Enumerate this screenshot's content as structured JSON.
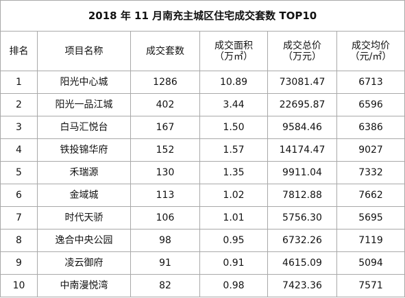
{
  "title": "2018 年 11 月南充主城区住宅成交套数 TOP10",
  "headers": {
    "rank": "排名",
    "name": "项目名称",
    "sets": "成交套数",
    "area_line1": "成交面积",
    "area_line2": "（万㎡）",
    "total_line1": "成交总价",
    "total_line2": "（万元）",
    "avg_line1": "成交均价",
    "avg_line2": "（元/㎡）"
  },
  "rows": [
    {
      "rank": "1",
      "name": "阳光中心城",
      "sets": "1286",
      "area": "10.89",
      "total": "73081.47",
      "avg": "6713"
    },
    {
      "rank": "2",
      "name": "阳光一品江城",
      "sets": "402",
      "area": "3.44",
      "total": "22695.87",
      "avg": "6596"
    },
    {
      "rank": "3",
      "name": "白马汇悦台",
      "sets": "167",
      "area": "1.50",
      "total": "9584.46",
      "avg": "6386"
    },
    {
      "rank": "4",
      "name": "铁投锦华府",
      "sets": "152",
      "area": "1.57",
      "total": "14174.47",
      "avg": "9027"
    },
    {
      "rank": "5",
      "name": "禾瑞源",
      "sets": "130",
      "area": "1.35",
      "total": "9911.04",
      "avg": "7332"
    },
    {
      "rank": "6",
      "name": "金域城",
      "sets": "113",
      "area": "1.02",
      "total": "7812.88",
      "avg": "7662"
    },
    {
      "rank": "7",
      "name": "时代天骄",
      "sets": "106",
      "area": "1.01",
      "total": "5756.30",
      "avg": "5695"
    },
    {
      "rank": "8",
      "name": "逸合中央公园",
      "sets": "98",
      "area": "0.95",
      "total": "6732.26",
      "avg": "7119"
    },
    {
      "rank": "9",
      "name": "凌云御府",
      "sets": "91",
      "area": "0.91",
      "total": "4615.09",
      "avg": "5094"
    },
    {
      "rank": "10",
      "name": "中南漫悦湾",
      "sets": "82",
      "area": "0.98",
      "total": "7423.36",
      "avg": "7571"
    }
  ]
}
